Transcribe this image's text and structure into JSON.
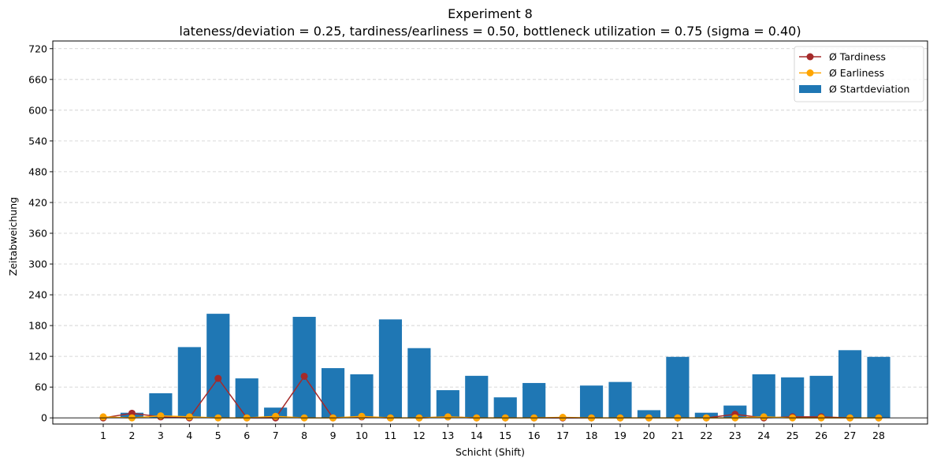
{
  "chart_data": {
    "type": "bar",
    "title": "Experiment 8",
    "subtitle": "lateness/deviation = 0.25, tardiness/earliness = 0.50, bottleneck utilization = 0.75 (sigma = 0.40)",
    "xlabel": "Schicht (Shift)",
    "ylabel": "Zeitabweichung",
    "categories": [
      "1",
      "2",
      "3",
      "4",
      "5",
      "6",
      "7",
      "8",
      "9",
      "10",
      "11",
      "12",
      "13",
      "14",
      "15",
      "16",
      "17",
      "18",
      "19",
      "20",
      "21",
      "22",
      "23",
      "24",
      "25",
      "26",
      "27",
      "28"
    ],
    "yticks": [
      "0",
      "60",
      "120",
      "180",
      "240",
      "300",
      "360",
      "420",
      "480",
      "540",
      "600",
      "660",
      "720"
    ],
    "ylim": [
      -12,
      735
    ],
    "grid": "y-dashed",
    "legend_position": "top-right",
    "series": [
      {
        "name": "Ø Startdeviation",
        "kind": "bar",
        "color": "#1f77b4",
        "values": [
          0,
          10,
          48,
          138,
          203,
          77,
          20,
          197,
          97,
          85,
          192,
          136,
          54,
          82,
          40,
          68,
          0,
          63,
          70,
          15,
          119,
          10,
          24,
          85,
          79,
          82,
          132,
          119
        ]
      },
      {
        "name": "Ø Tardiness",
        "kind": "line",
        "color": "#a52a2a",
        "values": [
          0,
          9,
          2,
          0,
          77,
          0,
          0,
          81,
          0,
          2,
          0,
          0,
          2,
          0,
          0,
          0,
          0,
          0,
          0,
          0,
          0,
          0,
          7,
          0,
          2,
          2,
          0,
          0
        ]
      },
      {
        "name": "Ø Earliness",
        "kind": "line",
        "color": "#ffa500",
        "values": [
          2,
          0,
          4,
          2,
          0,
          0,
          3,
          0,
          0,
          3,
          0,
          0,
          2,
          0,
          0,
          0,
          1,
          0,
          0,
          0,
          0,
          0,
          0,
          2,
          0,
          0,
          0,
          0
        ]
      }
    ]
  }
}
